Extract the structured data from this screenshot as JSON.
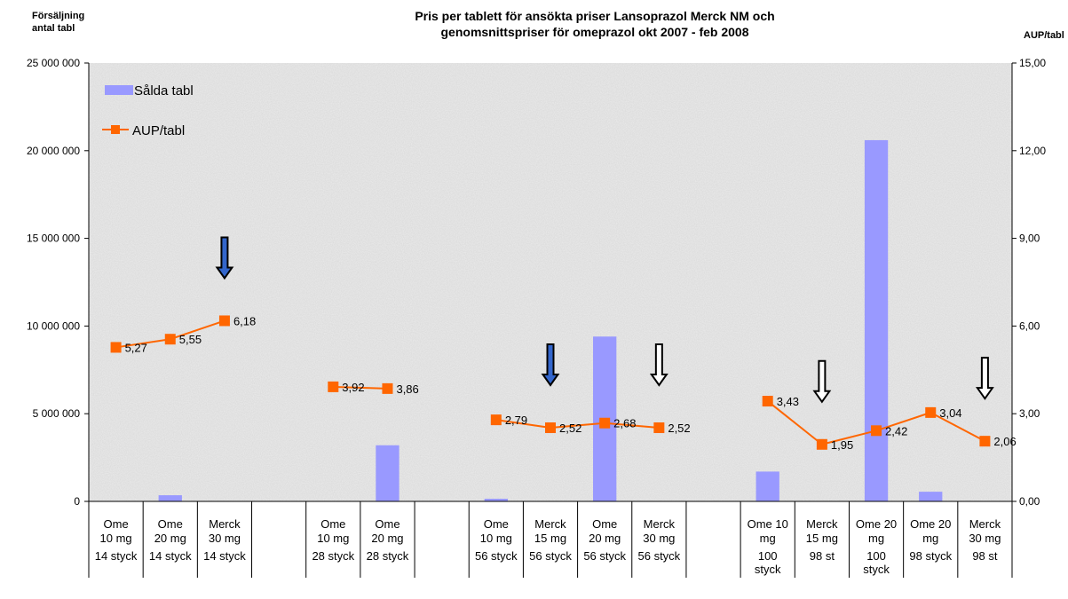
{
  "chart_data": {
    "type": "bar+line",
    "title_line1": "Pris per tablett för ansökta priser Lansoprazol Merck NM och",
    "title_line2": "genomsnittspriser för omeprazol okt 2007 - feb 2008",
    "ylabel_left_line1": "Försäljning",
    "ylabel_left_line2": "antal tabl",
    "ylabel_right": "AUP/tabl",
    "y_left": {
      "min": 0,
      "max": 25000000,
      "ticks": [
        "0",
        "5 000 000",
        "10 000 000",
        "15 000 000",
        "20 000 000",
        "25 000 000"
      ]
    },
    "y_right": {
      "min": 0,
      "max": 15,
      "ticks": [
        "0,00",
        "3,00",
        "6,00",
        "9,00",
        "12,00",
        "15,00"
      ]
    },
    "grid": false,
    "legend_position": "top-left",
    "colors": {
      "bar": "#9999ff",
      "line": "#ff6600",
      "arrow_blue": "#3366cc",
      "arrow_black": "#000000"
    },
    "categories": [
      {
        "line1": "Ome",
        "line2": "10 mg",
        "pack": [
          "14 styck"
        ]
      },
      {
        "line1": "Ome",
        "line2": "20 mg",
        "pack": [
          "14 styck"
        ]
      },
      {
        "line1": "Merck",
        "line2": "30 mg",
        "pack": [
          "14 styck"
        ]
      },
      {
        "line1": "",
        "line2": "",
        "pack": []
      },
      {
        "line1": "Ome",
        "line2": "10 mg",
        "pack": [
          "28 styck"
        ]
      },
      {
        "line1": "Ome",
        "line2": "20 mg",
        "pack": [
          "28 styck"
        ]
      },
      {
        "line1": "",
        "line2": "",
        "pack": []
      },
      {
        "line1": "Ome",
        "line2": "10 mg",
        "pack": [
          "56 styck"
        ]
      },
      {
        "line1": "Merck",
        "line2": "15 mg",
        "pack": [
          "56 styck"
        ]
      },
      {
        "line1": "Ome",
        "line2": "20 mg",
        "pack": [
          "56 styck"
        ]
      },
      {
        "line1": "Merck",
        "line2": "30 mg",
        "pack": [
          "56 styck"
        ]
      },
      {
        "line1": "",
        "line2": "",
        "pack": []
      },
      {
        "line1": "Ome 10",
        "line2": "mg",
        "pack": [
          "100",
          "styck"
        ]
      },
      {
        "line1": "Merck",
        "line2": "15 mg",
        "pack": [
          "98 st"
        ]
      },
      {
        "line1": "Ome 20",
        "line2": "mg",
        "pack": [
          "100",
          "styck"
        ]
      },
      {
        "line1": "Ome 20",
        "line2": "mg",
        "pack": [
          "98 styck"
        ]
      },
      {
        "line1": "Merck",
        "line2": "30 mg",
        "pack": [
          "98 st"
        ]
      }
    ],
    "series": [
      {
        "name": "Sålda tabl",
        "kind": "bar",
        "axis": "left",
        "values": [
          0,
          350000,
          0,
          null,
          0,
          3200000,
          null,
          150000,
          0,
          9400000,
          0,
          null,
          1700000,
          0,
          20600000,
          550000,
          0
        ]
      },
      {
        "name": "AUP/tabl",
        "kind": "line",
        "axis": "right",
        "values": [
          5.27,
          5.55,
          6.18,
          null,
          3.92,
          3.86,
          null,
          2.79,
          2.52,
          2.68,
          2.52,
          null,
          3.43,
          1.95,
          2.42,
          3.04,
          2.06
        ],
        "labels": [
          "5,27",
          "5,55",
          "6,18",
          "",
          "3,92",
          "3,86",
          "",
          "2,79",
          "2,52",
          "2,68",
          "2,52",
          "",
          "3,43",
          "1,95",
          "2,42",
          "3,04",
          "2,06"
        ]
      }
    ],
    "arrows": [
      {
        "category": 2,
        "style": "blue"
      },
      {
        "category": 8,
        "style": "blue"
      },
      {
        "category": 10,
        "style": "black"
      },
      {
        "category": 13,
        "style": "black"
      },
      {
        "category": 16,
        "style": "black"
      }
    ]
  }
}
